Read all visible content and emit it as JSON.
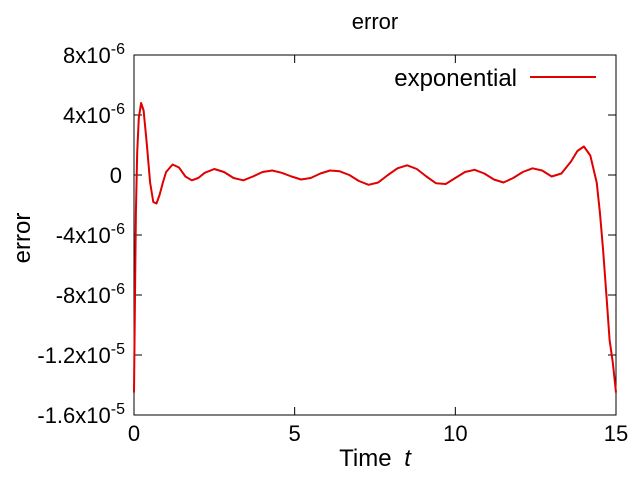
{
  "chart_data": {
    "type": "line",
    "title": "error",
    "xlabel": "Time",
    "xlabel_var": "t",
    "ylabel": "error",
    "xlim": [
      0,
      15
    ],
    "ylim": [
      -1.6e-05,
      8e-06
    ],
    "xticks": [
      {
        "value": 0,
        "label": "0"
      },
      {
        "value": 5,
        "label": "5"
      },
      {
        "value": 10,
        "label": "10"
      },
      {
        "value": 15,
        "label": "15"
      }
    ],
    "yticks": [
      {
        "value": 8e-06,
        "mant": "8x10",
        "exp": "-6"
      },
      {
        "value": 4e-06,
        "mant": "4x10",
        "exp": "-6"
      },
      {
        "value": 0,
        "mant": "0",
        "exp": ""
      },
      {
        "value": -4e-06,
        "mant": "-4x10",
        "exp": "-6"
      },
      {
        "value": -8e-06,
        "mant": "-8x10",
        "exp": "-6"
      },
      {
        "value": -1.2e-05,
        "mant": "-1.2x10",
        "exp": "-5"
      },
      {
        "value": -1.6e-05,
        "mant": "-1.6x10",
        "exp": "-5"
      }
    ],
    "grid": false,
    "legend_position": "top-right",
    "series": [
      {
        "name": "exponential",
        "color": "#e00000",
        "x": [
          0.0,
          0.03,
          0.06,
          0.1,
          0.15,
          0.22,
          0.3,
          0.4,
          0.5,
          0.6,
          0.7,
          0.8,
          0.9,
          1.0,
          1.2,
          1.4,
          1.6,
          1.8,
          2.0,
          2.2,
          2.5,
          2.8,
          3.1,
          3.4,
          3.7,
          4.0,
          4.3,
          4.6,
          4.9,
          5.2,
          5.5,
          5.8,
          6.1,
          6.4,
          6.7,
          7.0,
          7.3,
          7.6,
          7.9,
          8.2,
          8.5,
          8.8,
          9.1,
          9.4,
          9.7,
          10.0,
          10.3,
          10.6,
          10.9,
          11.2,
          11.5,
          11.8,
          12.1,
          12.4,
          12.7,
          13.0,
          13.3,
          13.6,
          13.8,
          14.0,
          14.2,
          14.4,
          14.5,
          14.6,
          14.7,
          14.8,
          14.9,
          14.95,
          15.0
        ],
        "y": [
          -1.45e-05,
          -8e-06,
          -2.5e-06,
          1.5e-06,
          3.8e-06,
          4.8e-06,
          4.3e-06,
          2e-06,
          -5e-07,
          -1.8e-06,
          -1.9e-06,
          -1.3e-06,
          -5e-07,
          2e-07,
          7e-07,
          5e-07,
          -1e-07,
          -3.5e-07,
          -2e-07,
          1.5e-07,
          4e-07,
          2e-07,
          -2e-07,
          -3.5e-07,
          -1e-07,
          2e-07,
          3e-07,
          1.5e-07,
          -1e-07,
          -3e-07,
          -2e-07,
          1e-07,
          3e-07,
          2.5e-07,
          0.0,
          -4e-07,
          -6.5e-07,
          -5e-07,
          0.0,
          4.5e-07,
          6.5e-07,
          4e-07,
          -1e-07,
          -5.5e-07,
          -6e-07,
          -2e-07,
          2e-07,
          3.5e-07,
          1e-07,
          -3e-07,
          -5e-07,
          -2e-07,
          2e-07,
          4.5e-07,
          3e-07,
          -1e-07,
          1e-07,
          9e-07,
          1.6e-06,
          1.9e-06,
          1.3e-06,
          -5e-07,
          -2.5e-06,
          -5e-06,
          -8e-06,
          -1.1e-05,
          -1.25e-05,
          -1.35e-05,
          -1.45e-05
        ]
      }
    ]
  }
}
